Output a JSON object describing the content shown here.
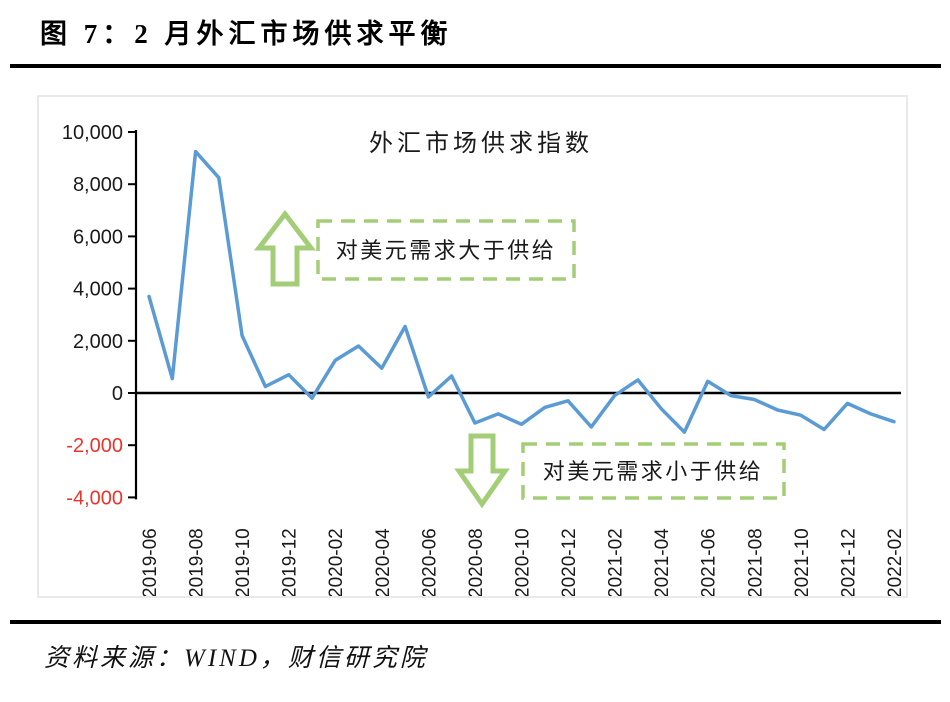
{
  "header": {
    "title": "图 7：2 月外汇市场供求平衡"
  },
  "footer": {
    "source": "资料来源：WIND，财信研究院"
  },
  "chart_data": {
    "type": "line",
    "title": "外汇市场供求指数",
    "x": [
      "2019-06",
      "2019-07",
      "2019-08",
      "2019-09",
      "2019-10",
      "2019-11",
      "2019-12",
      "2020-01",
      "2020-02",
      "2020-03",
      "2020-04",
      "2020-05",
      "2020-06",
      "2020-07",
      "2020-08",
      "2020-09",
      "2020-10",
      "2020-11",
      "2020-12",
      "2021-01",
      "2021-02",
      "2021-03",
      "2021-04",
      "2021-05",
      "2021-06",
      "2021-07",
      "2021-08",
      "2021-09",
      "2021-10",
      "2021-11",
      "2021-12",
      "2022-01",
      "2022-02"
    ],
    "values": [
      3700,
      550,
      9250,
      8250,
      2200,
      250,
      700,
      -200,
      1250,
      1800,
      950,
      2550,
      -150,
      650,
      -1150,
      -800,
      -1200,
      -550,
      -300,
      -1300,
      -100,
      500,
      -600,
      -1500,
      450,
      -100,
      -250,
      -650,
      -850,
      -1400,
      -400,
      -800,
      -1100
    ],
    "x_tick_every": 2,
    "ylim": [
      -4000,
      10000
    ],
    "ytick_interval": 2000,
    "grid": false,
    "legend": "none",
    "annotations": [
      {
        "id": "up",
        "text": "对美元需求大于供给"
      },
      {
        "id": "down",
        "text": "对美元需求小于供给"
      }
    ],
    "colors": {
      "line": "#5B9BD5",
      "annotation_green": "#A3CE77",
      "negative_tick": "#E8352B",
      "tick_text": "#1A1A1A",
      "axis": "#000000"
    }
  }
}
